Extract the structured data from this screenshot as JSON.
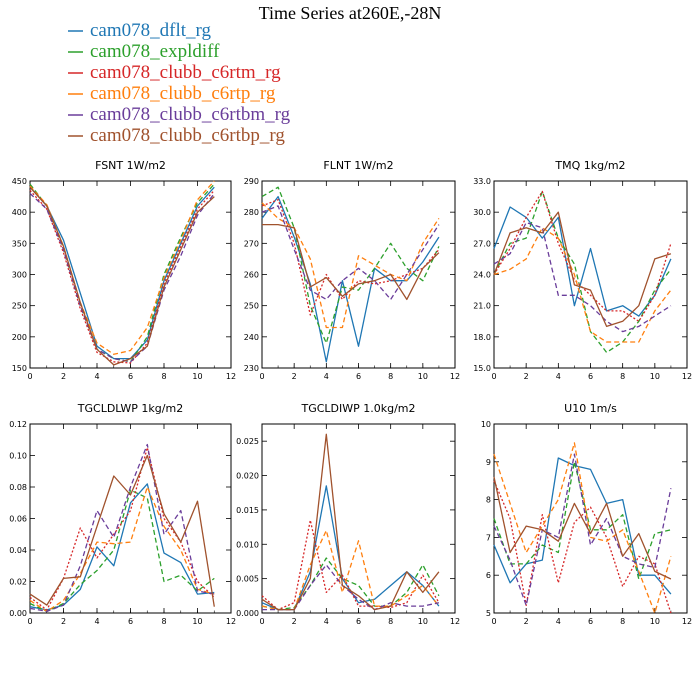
{
  "figure_title": "Time Series at260E,-28N",
  "legend": [
    {
      "label": "cam078_dflt_rg",
      "color": "#1f77b4",
      "dash": "solid"
    },
    {
      "label": "cam078_expldiff",
      "color": "#2ca02c",
      "dash": "dash"
    },
    {
      "label": "cam078_clubb_c6rtm_rg",
      "color": "#d62728",
      "dash": "dot"
    },
    {
      "label": "cam078_clubb_c6rtp_rg",
      "color": "#ff7f0e",
      "dash": "dash"
    },
    {
      "label": "cam078_clubb_c6rtbm_rg",
      "color": "#6a3d9a",
      "dash": "dash"
    },
    {
      "label": "cam078_clubb_c6rtbp_rg",
      "color": "#a0522d",
      "dash": "solid"
    }
  ],
  "chart_data": [
    {
      "type": "line",
      "title": "FSNT   1W/m2",
      "x": [
        0,
        1,
        2,
        3,
        4,
        5,
        6,
        7,
        8,
        9,
        10,
        11
      ],
      "xlim": [
        0,
        12
      ],
      "ylim": [
        150,
        450
      ],
      "xticks": [
        "0",
        "2",
        "4",
        "6",
        "8",
        "10",
        "12"
      ],
      "yticks": [
        "150",
        "200",
        "250",
        "300",
        "350",
        "400",
        "450"
      ],
      "series": [
        {
          "values": [
            440,
            410,
            355,
            270,
            185,
            165,
            165,
            195,
            290,
            350,
            410,
            440
          ]
        },
        {
          "values": [
            445,
            410,
            340,
            250,
            180,
            165,
            160,
            200,
            300,
            360,
            415,
            445
          ]
        },
        {
          "values": [
            435,
            405,
            335,
            245,
            175,
            160,
            158,
            190,
            285,
            345,
            405,
            435
          ]
        },
        {
          "values": [
            442,
            412,
            345,
            255,
            190,
            172,
            178,
            215,
            295,
            355,
            420,
            450
          ]
        },
        {
          "values": [
            430,
            405,
            340,
            250,
            180,
            165,
            160,
            185,
            275,
            330,
            395,
            430
          ]
        },
        {
          "values": [
            440,
            410,
            345,
            255,
            180,
            155,
            165,
            185,
            280,
            340,
            400,
            425
          ]
        }
      ]
    },
    {
      "type": "line",
      "title": "FLNT   1W/m2",
      "x": [
        0,
        1,
        2,
        3,
        4,
        5,
        6,
        7,
        8,
        9,
        10,
        11
      ],
      "xlim": [
        0,
        12
      ],
      "ylim": [
        230,
        290
      ],
      "xticks": [
        "0",
        "2",
        "4",
        "6",
        "8",
        "10",
        "12"
      ],
      "yticks": [
        "230",
        "240",
        "250",
        "260",
        "270",
        "280",
        "290"
      ],
      "series": [
        {
          "values": [
            278,
            285,
            272,
            257,
            232,
            258,
            237,
            262,
            258,
            258,
            264,
            272
          ]
        },
        {
          "values": [
            285,
            288,
            275,
            250,
            238,
            256,
            255,
            262,
            270,
            262,
            258,
            269
          ]
        },
        {
          "values": [
            282,
            284,
            270,
            247,
            260,
            252,
            258,
            257,
            258,
            260,
            262,
            268
          ]
        },
        {
          "values": [
            283,
            278,
            275,
            265,
            243,
            243,
            266,
            263,
            260,
            258,
            270,
            278
          ]
        },
        {
          "values": [
            280,
            282,
            268,
            255,
            252,
            258,
            262,
            258,
            252,
            260,
            268,
            276
          ]
        },
        {
          "values": [
            276,
            276,
            275,
            256,
            259,
            253,
            257,
            258,
            260,
            252,
            262,
            267
          ]
        }
      ]
    },
    {
      "type": "line",
      "title": "TMQ   1kg/m2",
      "x": [
        0,
        1,
        2,
        3,
        4,
        5,
        6,
        7,
        8,
        9,
        10,
        11
      ],
      "xlim": [
        0,
        12
      ],
      "ylim": [
        15,
        33
      ],
      "xticks": [
        "0",
        "2",
        "4",
        "6",
        "8",
        "10",
        "12"
      ],
      "yticks": [
        "15.0",
        "18.0",
        "21.0",
        "24.0",
        "27.0",
        "30.0",
        "33.0"
      ],
      "series": [
        {
          "values": [
            26.5,
            30.5,
            29.5,
            27.5,
            29.5,
            21.0,
            26.5,
            20.5,
            21.0,
            20.0,
            22.0,
            25.5
          ]
        },
        {
          "values": [
            24.0,
            27.0,
            27.5,
            32.0,
            27.5,
            25.0,
            18.5,
            16.5,
            17.5,
            19.5,
            22.5,
            24.5
          ]
        },
        {
          "values": [
            24.0,
            26.5,
            29.5,
            32.0,
            27.0,
            23.5,
            22.0,
            20.5,
            20.5,
            19.5,
            22.0,
            27.0
          ]
        },
        {
          "values": [
            24.0,
            24.5,
            25.5,
            28.5,
            27.5,
            24.0,
            18.5,
            17.5,
            17.5,
            17.5,
            20.5,
            22.5
          ]
        },
        {
          "values": [
            25.0,
            26.0,
            29.0,
            28.5,
            22.0,
            22.0,
            21.0,
            19.5,
            18.5,
            19.0,
            20.0,
            21.0
          ]
        },
        {
          "values": [
            24.0,
            28.0,
            28.5,
            28.0,
            30.0,
            23.0,
            22.5,
            19.0,
            19.5,
            21.0,
            25.5,
            26.0
          ]
        }
      ]
    },
    {
      "type": "line",
      "title": "TGCLDLWP   1kg/m2",
      "x": [
        0,
        1,
        2,
        3,
        4,
        5,
        6,
        7,
        8,
        9,
        10,
        11
      ],
      "xlim": [
        0,
        12
      ],
      "ylim": [
        0,
        0.12
      ],
      "xticks": [
        "0",
        "2",
        "4",
        "6",
        "8",
        "10",
        "12"
      ],
      "yticks": [
        "0.00",
        "0.02",
        "0.04",
        "0.06",
        "0.08",
        "0.10",
        "0.12"
      ],
      "series": [
        {
          "values": [
            0.004,
            0.002,
            0.005,
            0.015,
            0.042,
            0.03,
            0.07,
            0.082,
            0.038,
            0.032,
            0.012,
            0.013
          ]
        },
        {
          "values": [
            0.006,
            0.001,
            0.006,
            0.018,
            0.027,
            0.04,
            0.078,
            0.073,
            0.02,
            0.024,
            0.014,
            0.022
          ]
        },
        {
          "values": [
            0.01,
            0.002,
            0.022,
            0.054,
            0.035,
            0.05,
            0.065,
            0.105,
            0.06,
            0.045,
            0.02,
            0.01
          ]
        },
        {
          "values": [
            0.008,
            0.001,
            0.008,
            0.025,
            0.045,
            0.044,
            0.045,
            0.08,
            0.055,
            0.04,
            0.015,
            0.012
          ]
        },
        {
          "values": [
            0.003,
            0.001,
            0.005,
            0.03,
            0.065,
            0.048,
            0.08,
            0.107,
            0.05,
            0.065,
            0.014,
            0.012
          ]
        },
        {
          "values": [
            0.012,
            0.005,
            0.022,
            0.023,
            0.055,
            0.087,
            0.075,
            0.1,
            0.063,
            0.045,
            0.071,
            0.004
          ]
        }
      ]
    },
    {
      "type": "line",
      "title": "TGCLDIWP   1.0kg/m2",
      "x": [
        0,
        1,
        2,
        3,
        4,
        5,
        6,
        7,
        8,
        9,
        10,
        11
      ],
      "xlim": [
        0,
        12
      ],
      "ylim": [
        0,
        0.0275
      ],
      "xticks": [
        "0",
        "2",
        "4",
        "6",
        "8",
        "10",
        "12"
      ],
      "yticks": [
        "0.000",
        "0.005",
        "0.010",
        "0.015",
        "0.020",
        "0.025"
      ],
      "series": [
        {
          "values": [
            0.0015,
            0.0005,
            0.0005,
            0.006,
            0.0185,
            0.005,
            0.0015,
            0.002,
            0.004,
            0.006,
            0.004,
            0.001
          ]
        },
        {
          "values": [
            0.001,
            0.0005,
            0.0008,
            0.004,
            0.008,
            0.005,
            0.004,
            0.001,
            0.001,
            0.003,
            0.007,
            0.0025
          ]
        },
        {
          "values": [
            0.0025,
            0.0005,
            0.0015,
            0.0135,
            0.003,
            0.0055,
            0.001,
            0.001,
            0.0008,
            0.0015,
            0.0055,
            0.0015
          ]
        },
        {
          "values": [
            0.001,
            0.0005,
            0.0005,
            0.007,
            0.012,
            0.003,
            0.0105,
            0.001,
            0.001,
            0.0025,
            0.004,
            0.001
          ]
        },
        {
          "values": [
            0.0005,
            0.0005,
            0.0005,
            0.004,
            0.007,
            0.004,
            0.002,
            0.0005,
            0.0015,
            0.001,
            0.001,
            0.0015
          ]
        },
        {
          "values": [
            0.002,
            0.0005,
            0.0005,
            0.005,
            0.026,
            0.004,
            0.0025,
            0.0005,
            0.001,
            0.006,
            0.003,
            0.006
          ]
        }
      ]
    },
    {
      "type": "line",
      "title": "U10   1m/s",
      "x": [
        0,
        1,
        2,
        3,
        4,
        5,
        6,
        7,
        8,
        9,
        10,
        11
      ],
      "xlim": [
        0,
        12
      ],
      "ylim": [
        5,
        10
      ],
      "xticks": [
        "0",
        "2",
        "4",
        "6",
        "8",
        "10",
        "12"
      ],
      "yticks": [
        "5",
        "6",
        "7",
        "8",
        "9",
        "10"
      ],
      "series": [
        {
          "values": [
            6.8,
            5.8,
            6.3,
            6.4,
            9.1,
            8.9,
            8.8,
            7.9,
            8.0,
            6.0,
            6.0,
            5.5
          ]
        },
        {
          "values": [
            7.5,
            6.3,
            6.3,
            6.8,
            6.6,
            9.0,
            7.2,
            7.2,
            7.6,
            5.9,
            7.1,
            7.2
          ]
        },
        {
          "values": [
            8.5,
            7.5,
            5.2,
            7.6,
            5.8,
            7.4,
            7.8,
            7.0,
            5.7,
            6.5,
            6.3,
            5.0
          ]
        },
        {
          "values": [
            9.2,
            7.9,
            6.6,
            7.3,
            8.0,
            9.5,
            7.0,
            6.9,
            7.2,
            6.1,
            5.0,
            6.5
          ]
        },
        {
          "values": [
            7.3,
            6.4,
            5.2,
            7.2,
            7.0,
            9.2,
            6.8,
            7.5,
            6.5,
            6.3,
            6.2,
            8.3
          ]
        },
        {
          "values": [
            8.6,
            6.6,
            7.3,
            7.2,
            6.9,
            7.9,
            7.1,
            7.9,
            6.5,
            7.1,
            6.1,
            5.9
          ]
        }
      ]
    }
  ]
}
